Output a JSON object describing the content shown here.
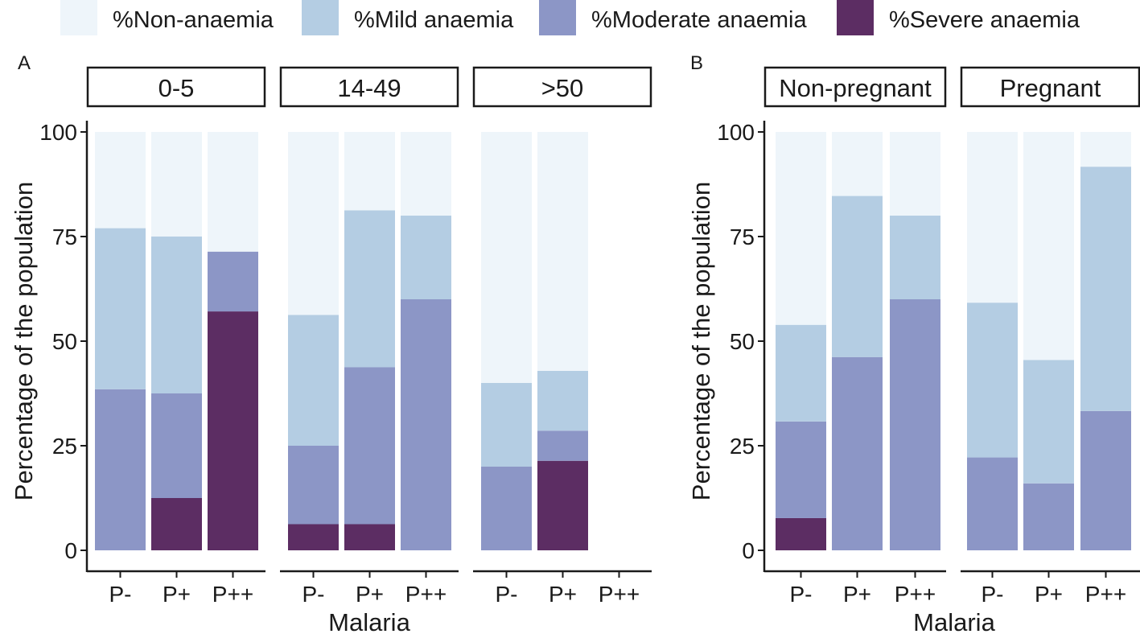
{
  "legend": [
    {
      "label": "%Non-anaemia",
      "color": "#eef5fa"
    },
    {
      "label": "%Mild anaemia",
      "color": "#b4cde3"
    },
    {
      "label": "%Moderate anaemia",
      "color": "#8c96c6"
    },
    {
      "label": "%Severe anaemia",
      "color": "#5c2d63"
    }
  ],
  "chart_data": [
    {
      "type": "bar",
      "stacked": true,
      "panel_label": "A",
      "title": "",
      "xlabel": "Malaria",
      "ylabel": "Percentage of the population",
      "ylim": [
        0,
        100
      ],
      "yticks": [
        0,
        25,
        50,
        75,
        100
      ],
      "categories": [
        "P-",
        "P+",
        "P++"
      ],
      "series_order": [
        "%Severe anaemia",
        "%Moderate anaemia",
        "%Mild anaemia",
        "%Non-anaemia"
      ],
      "facets": [
        {
          "label": "0-5",
          "bars": [
            {
              "category": "P-",
              "severe": 0,
              "moderate": 38.5,
              "mild": 38.5,
              "non": 23.0
            },
            {
              "category": "P+",
              "severe": 12.5,
              "moderate": 25.0,
              "mild": 37.5,
              "non": 25.0
            },
            {
              "category": "P++",
              "severe": 57.1,
              "moderate": 14.3,
              "mild": 0,
              "non": 28.6
            }
          ]
        },
        {
          "label": "14-49",
          "bars": [
            {
              "category": "P-",
              "severe": 6.25,
              "moderate": 18.75,
              "mild": 31.25,
              "non": 43.75
            },
            {
              "category": "P+",
              "severe": 6.25,
              "moderate": 37.5,
              "mild": 37.5,
              "non": 18.75
            },
            {
              "category": "P++",
              "severe": 0,
              "moderate": 60.0,
              "mild": 20.0,
              "non": 20.0
            }
          ]
        },
        {
          "label": ">50",
          "bars": [
            {
              "category": "P-",
              "severe": 0,
              "moderate": 20.0,
              "mild": 20.0,
              "non": 60.0
            },
            {
              "category": "P+",
              "severe": 21.4,
              "moderate": 7.2,
              "mild": 14.3,
              "non": 57.1
            },
            {
              "category": "P++",
              "severe": 0,
              "moderate": 0,
              "mild": 0,
              "non": 0
            }
          ]
        }
      ]
    },
    {
      "type": "bar",
      "stacked": true,
      "panel_label": "B",
      "title": "",
      "xlabel": "Malaria",
      "ylabel": "Percentage of the population",
      "ylim": [
        0,
        100
      ],
      "yticks": [
        0,
        25,
        50,
        75,
        100
      ],
      "categories": [
        "P-",
        "P+",
        "P++"
      ],
      "series_order": [
        "%Severe anaemia",
        "%Moderate anaemia",
        "%Mild anaemia",
        "%Non-anaemia"
      ],
      "facets": [
        {
          "label": "Non-pregnant",
          "bars": [
            {
              "category": "P-",
              "severe": 7.7,
              "moderate": 23.1,
              "mild": 23.1,
              "non": 46.1
            },
            {
              "category": "P+",
              "severe": 0,
              "moderate": 46.2,
              "mild": 38.5,
              "non": 15.3
            },
            {
              "category": "P++",
              "severe": 0,
              "moderate": 60.0,
              "mild": 20.0,
              "non": 20.0
            }
          ]
        },
        {
          "label": "Pregnant",
          "bars": [
            {
              "category": "P-",
              "severe": 0,
              "moderate": 22.2,
              "mild": 37.0,
              "non": 40.8
            },
            {
              "category": "P+",
              "severe": 0,
              "moderate": 16.0,
              "mild": 29.5,
              "non": 54.5
            },
            {
              "category": "P++",
              "severe": 0,
              "moderate": 33.3,
              "mild": 58.4,
              "non": 8.3
            }
          ]
        }
      ]
    }
  ]
}
